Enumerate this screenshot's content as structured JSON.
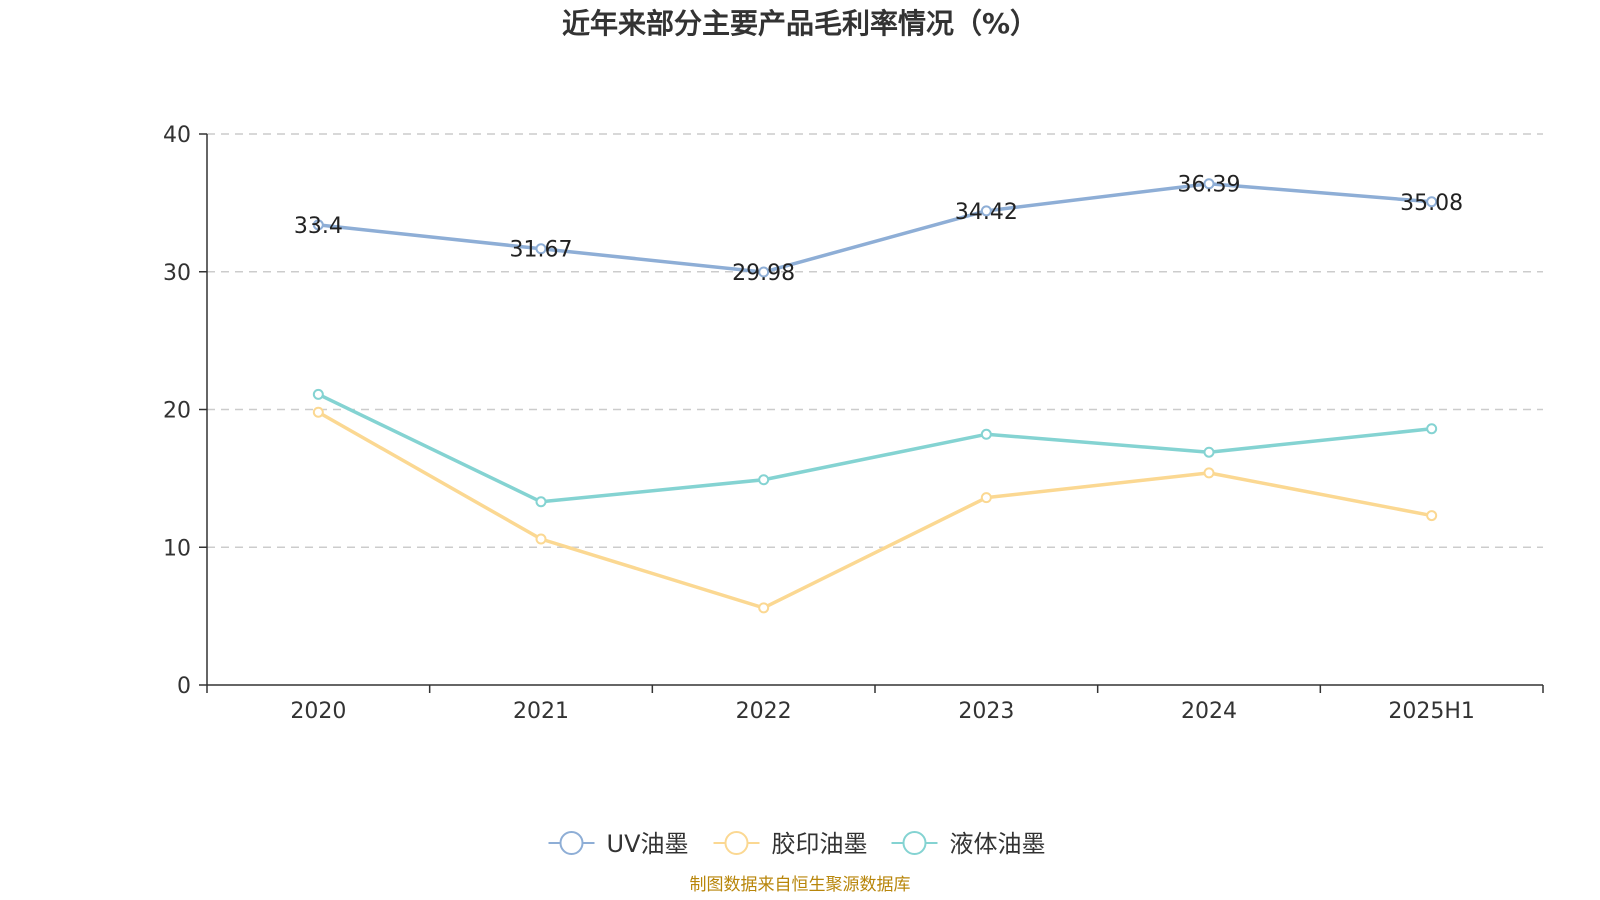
{
  "chart_data": {
    "type": "line",
    "title": "近年来部分主要产品毛利率情况（%）",
    "categories": [
      "2020",
      "2021",
      "2022",
      "2023",
      "2024",
      "2025H1"
    ],
    "ylim": [
      0,
      40
    ],
    "yticks": [
      "0",
      "10",
      "20",
      "30",
      "40"
    ],
    "grid": true,
    "legend_position": "bottom",
    "series": [
      {
        "name": "UV油墨",
        "color": "#8eaed6",
        "values": [
          33.4,
          31.67,
          29.98,
          34.42,
          36.39,
          35.08
        ],
        "labels": [
          "33.4",
          "31.67",
          "29.98",
          "34.42",
          "36.39",
          "35.08"
        ]
      },
      {
        "name": "胶印油墨",
        "color": "#fbd892",
        "values": [
          19.8,
          10.6,
          5.6,
          13.6,
          15.4,
          12.3
        ]
      },
      {
        "name": "液体油墨",
        "color": "#84d3d2",
        "values": [
          21.1,
          13.3,
          14.9,
          18.2,
          16.9,
          18.6
        ]
      }
    ],
    "source": "制图数据来自恒生聚源数据库"
  }
}
